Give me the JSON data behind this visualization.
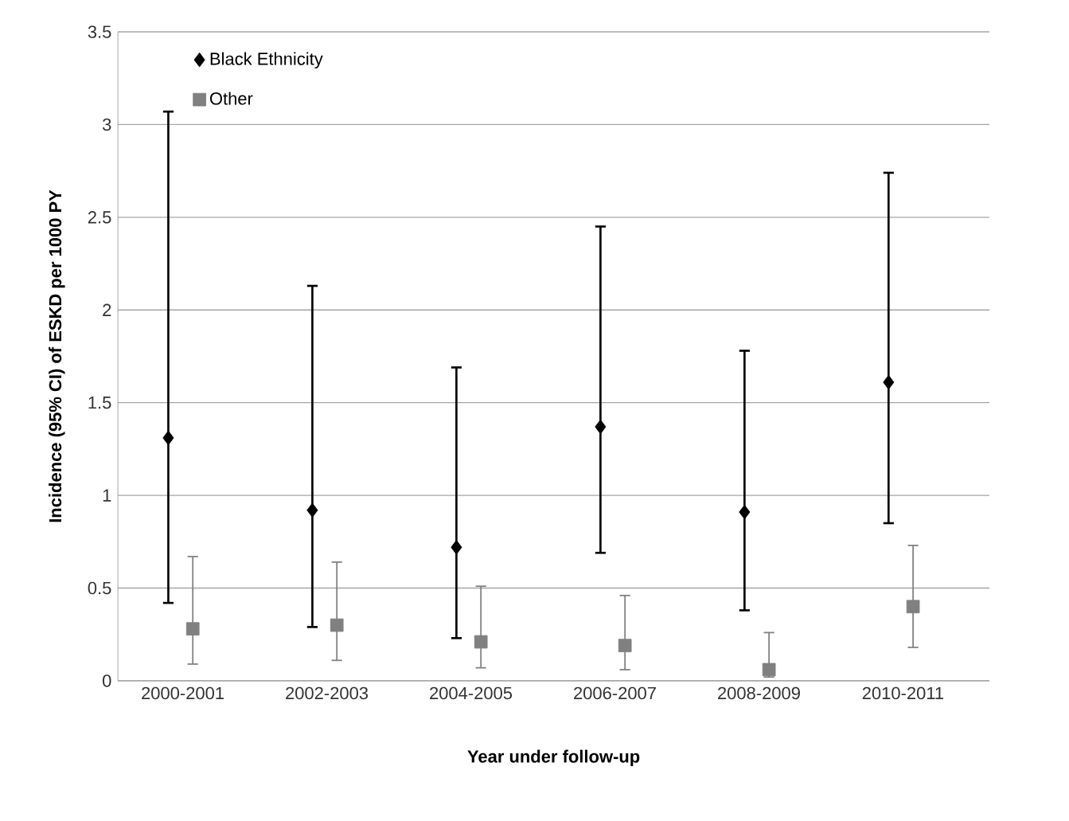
{
  "chart_data": {
    "type": "scatter",
    "xlabel": "Year under follow-up",
    "ylabel": "Incidence (95% CI) of ESKD per 1000 PY",
    "categories": [
      "2000-2001",
      "2002-2003",
      "2004-2005",
      "2006-2007",
      "2008-2009",
      "2010-2011"
    ],
    "series": [
      {
        "name": "Black Ethnicity",
        "color": "#000000",
        "marker": "diamond",
        "values": [
          1.31,
          0.92,
          0.72,
          1.37,
          0.91,
          1.61
        ],
        "errors": [
          [
            0.42,
            3.07
          ],
          [
            0.29,
            2.13
          ],
          [
            0.23,
            1.69
          ],
          [
            0.69,
            2.45
          ],
          [
            0.38,
            1.78
          ],
          [
            0.85,
            2.74
          ]
        ]
      },
      {
        "name": "Other",
        "color": "#808080",
        "marker": "square",
        "values": [
          0.28,
          0.3,
          0.21,
          0.19,
          0.06,
          0.4
        ],
        "errors": [
          [
            0.09,
            0.67
          ],
          [
            0.11,
            0.64
          ],
          [
            0.07,
            0.51
          ],
          [
            0.06,
            0.46
          ],
          [
            0.02,
            0.26
          ],
          [
            0.18,
            0.73
          ]
        ]
      }
    ],
    "ylim": [
      0,
      3.5
    ],
    "yticks": [
      0,
      0.5,
      1,
      1.5,
      2,
      2.5,
      3,
      3.5
    ],
    "grid": "y",
    "legend": "top left"
  }
}
